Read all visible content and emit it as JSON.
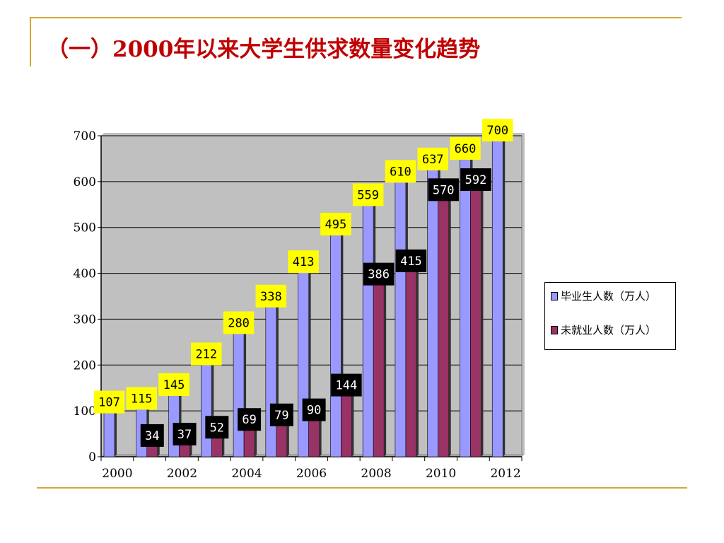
{
  "slide": {
    "title": "（一）2000年以来大学生供求数量变化趋势"
  },
  "colors": {
    "graduates": "#9999ff",
    "unemployed": "#993366",
    "plot_bg": "#c0c0c0",
    "accent_line": "#d6a73a",
    "title": "#c00000",
    "label_yellow": "#ffff00",
    "label_black": "#000000"
  },
  "chart_data": {
    "type": "bar",
    "title": "",
    "xlabel": "",
    "ylabel": "",
    "ylim": [
      0,
      700
    ],
    "yticks": [
      "0",
      "100",
      "200",
      "300",
      "400",
      "500",
      "600",
      "700"
    ],
    "categories": [
      "2000",
      "2001",
      "2002",
      "2003",
      "2004",
      "2005",
      "2006",
      "2007",
      "2008",
      "2009",
      "2010",
      "2011",
      "2012"
    ],
    "xtick_labels": [
      "2000",
      "2002",
      "2004",
      "2006",
      "2008",
      "2010",
      "2012"
    ],
    "series": [
      {
        "name": "毕业生人数（万人）",
        "values": [
          107,
          115,
          145,
          212,
          280,
          338,
          413,
          495,
          559,
          610,
          637,
          660,
          700
        ]
      },
      {
        "name": "未就业人数（万人）",
        "values": [
          null,
          34,
          37,
          52,
          69,
          79,
          90,
          144,
          386,
          415,
          570,
          592,
          null
        ]
      }
    ],
    "grid": true,
    "legend_position": "right"
  }
}
